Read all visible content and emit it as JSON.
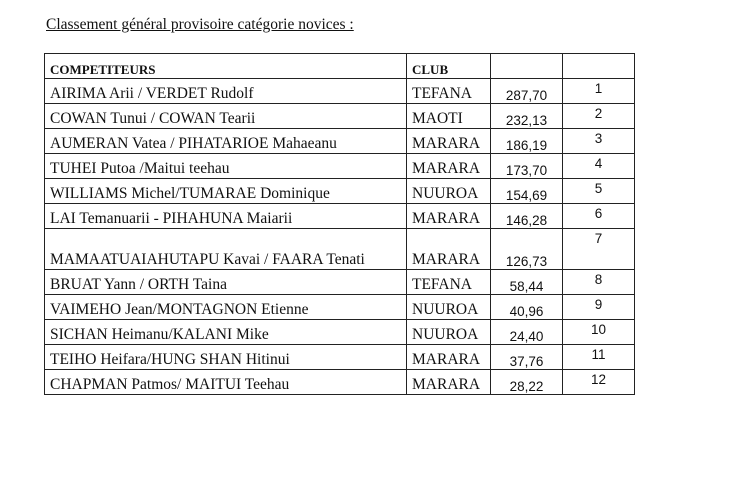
{
  "title": "Classement général provisoire catégorie novices :",
  "headers": {
    "competitors": "COMPETITEURS",
    "club": "CLUB",
    "score": "",
    "rank": ""
  },
  "rows": [
    {
      "name": "AIRIMA Arii / VERDET Rudolf",
      "club": "TEFANA",
      "score": "287,70",
      "rank": "1"
    },
    {
      "name": "COWAN Tunui / COWAN Tearii",
      "club": "MAOTI",
      "score": "232,13",
      "rank": "2"
    },
    {
      "name": "AUMERAN Vatea / PIHATARIOE Mahaeanu",
      "club": "MARARA",
      "score": "186,19",
      "rank": "3"
    },
    {
      "name": "TUHEI Putoa /Maitui teehau",
      "club": "MARARA",
      "score": "173,70",
      "rank": "4"
    },
    {
      "name": "WILLIAMS Michel/TUMARAE Dominique",
      "club": "NUUROA",
      "score": "154,69",
      "rank": "5"
    },
    {
      "name": "LAI Temanuarii - PIHAHUNA Maiarii",
      "club": "MARARA",
      "score": "146,28",
      "rank": "6"
    },
    {
      "name": "MAMAATUAIAHUTAPU Kavai / FAARA Tenati",
      "club": "MARARA",
      "score": "126,73",
      "rank": "7"
    },
    {
      "name": "BRUAT Yann / ORTH Taina",
      "club": "TEFANA",
      "score": "58,44",
      "rank": "8"
    },
    {
      "name": "VAIMEHO Jean/MONTAGNON Etienne",
      "club": "NUUROA",
      "score": "40,96",
      "rank": "9"
    },
    {
      "name": "SICHAN Heimanu/KALANI Mike",
      "club": "NUUROA",
      "score": "24,40",
      "rank": "10"
    },
    {
      "name": "TEIHO Heifara/HUNG SHAN Hitinui",
      "club": "MARARA",
      "score": "37,76",
      "rank": "11"
    },
    {
      "name": "CHAPMAN Patmos/ MAITUI Teehau",
      "club": "MARARA",
      "score": "28,22",
      "rank": "12"
    }
  ]
}
